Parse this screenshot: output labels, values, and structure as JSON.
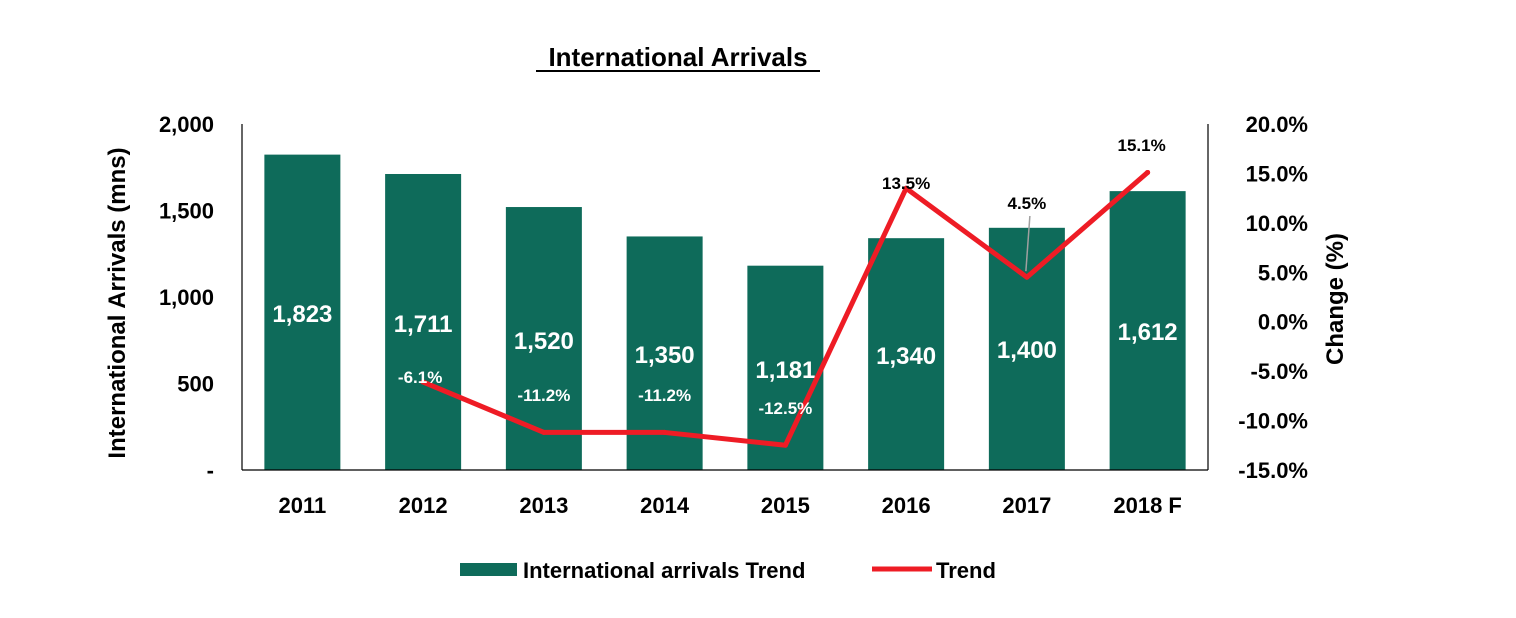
{
  "chart_data": {
    "type": "bar",
    "title": "International Arrivals",
    "categories": [
      "2011",
      "2012",
      "2013",
      "2014",
      "2015",
      "2016",
      "2017",
      "2018 F"
    ],
    "series": [
      {
        "name": "International arrivals Trend",
        "type": "bar",
        "axis": "left",
        "values": [
          1823,
          1711,
          1520,
          1350,
          1181,
          1340,
          1400,
          1612
        ],
        "labels": [
          "1,823",
          "1,711",
          "1,520",
          "1,350",
          "1,181",
          "1,340",
          "1,400",
          "1,612"
        ]
      },
      {
        "name": "Trend",
        "type": "line",
        "axis": "right",
        "values": [
          null,
          -6.1,
          -11.2,
          -11.2,
          -12.5,
          13.5,
          4.5,
          15.1
        ],
        "labels": [
          "",
          "-6.1%",
          "-11.2%",
          "-11.2%",
          "-12.5%",
          "13.5%",
          "4.5%",
          "15.1%"
        ]
      }
    ],
    "ylabel": "International Arrivals (mns)",
    "y2label": "Change (%)",
    "ylim": [
      0,
      2000
    ],
    "y2lim": [
      -15,
      20
    ],
    "yticks": [
      0,
      500,
      1000,
      1500,
      2000
    ],
    "yticklabels": [
      "-",
      "500",
      "1,000",
      "1,500",
      "2,000"
    ],
    "y2ticks": [
      -15,
      -10,
      -5,
      0,
      5,
      10,
      15,
      20
    ],
    "y2ticklabels": [
      "-15.0%",
      "-10.0%",
      "-5.0%",
      "0.0%",
      "5.0%",
      "10.0%",
      "15.0%",
      "20.0%"
    ],
    "grid": false,
    "legend_position": "bottom-center",
    "colors": {
      "bar": "#0e6b5a",
      "line": "#ee1c25",
      "axis": "#000000"
    }
  }
}
